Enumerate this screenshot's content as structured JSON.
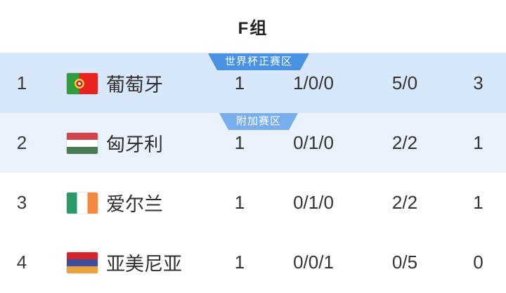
{
  "header": {
    "title": "F组"
  },
  "table": {
    "rows": [
      {
        "rank": "1",
        "flag": "portugal-flag",
        "team": "葡萄牙",
        "played": "1",
        "record": "1/0/0",
        "goals": "5/0",
        "points": "3",
        "row_bg": "#d8e8fa",
        "badge": {
          "label": "世界杯正赛区",
          "color": "#4a91e4"
        }
      },
      {
        "rank": "2",
        "flag": "hungary-flag",
        "team": "匈牙利",
        "played": "1",
        "record": "0/1/0",
        "goals": "2/2",
        "points": "1",
        "row_bg": "#e9f2fd",
        "badge": {
          "label": "附加赛区",
          "color": "#78aeeb"
        }
      },
      {
        "rank": "3",
        "flag": "ireland-flag",
        "team": "爱尔兰",
        "played": "1",
        "record": "0/1/0",
        "goals": "2/2",
        "points": "1",
        "row_bg": "#ffffff"
      },
      {
        "rank": "4",
        "flag": "armenia-flag",
        "team": "亚美尼亚",
        "played": "1",
        "record": "0/0/1",
        "goals": "0/5",
        "points": "0",
        "row_bg": "#ffffff"
      }
    ]
  },
  "colors": {
    "qualified_zone_badge": "#4a91e4",
    "playoff_zone_badge": "#78aeeb",
    "row1_highlight": "#d8e8fa",
    "row2_highlight": "#e9f2fd",
    "text": "#333333"
  }
}
